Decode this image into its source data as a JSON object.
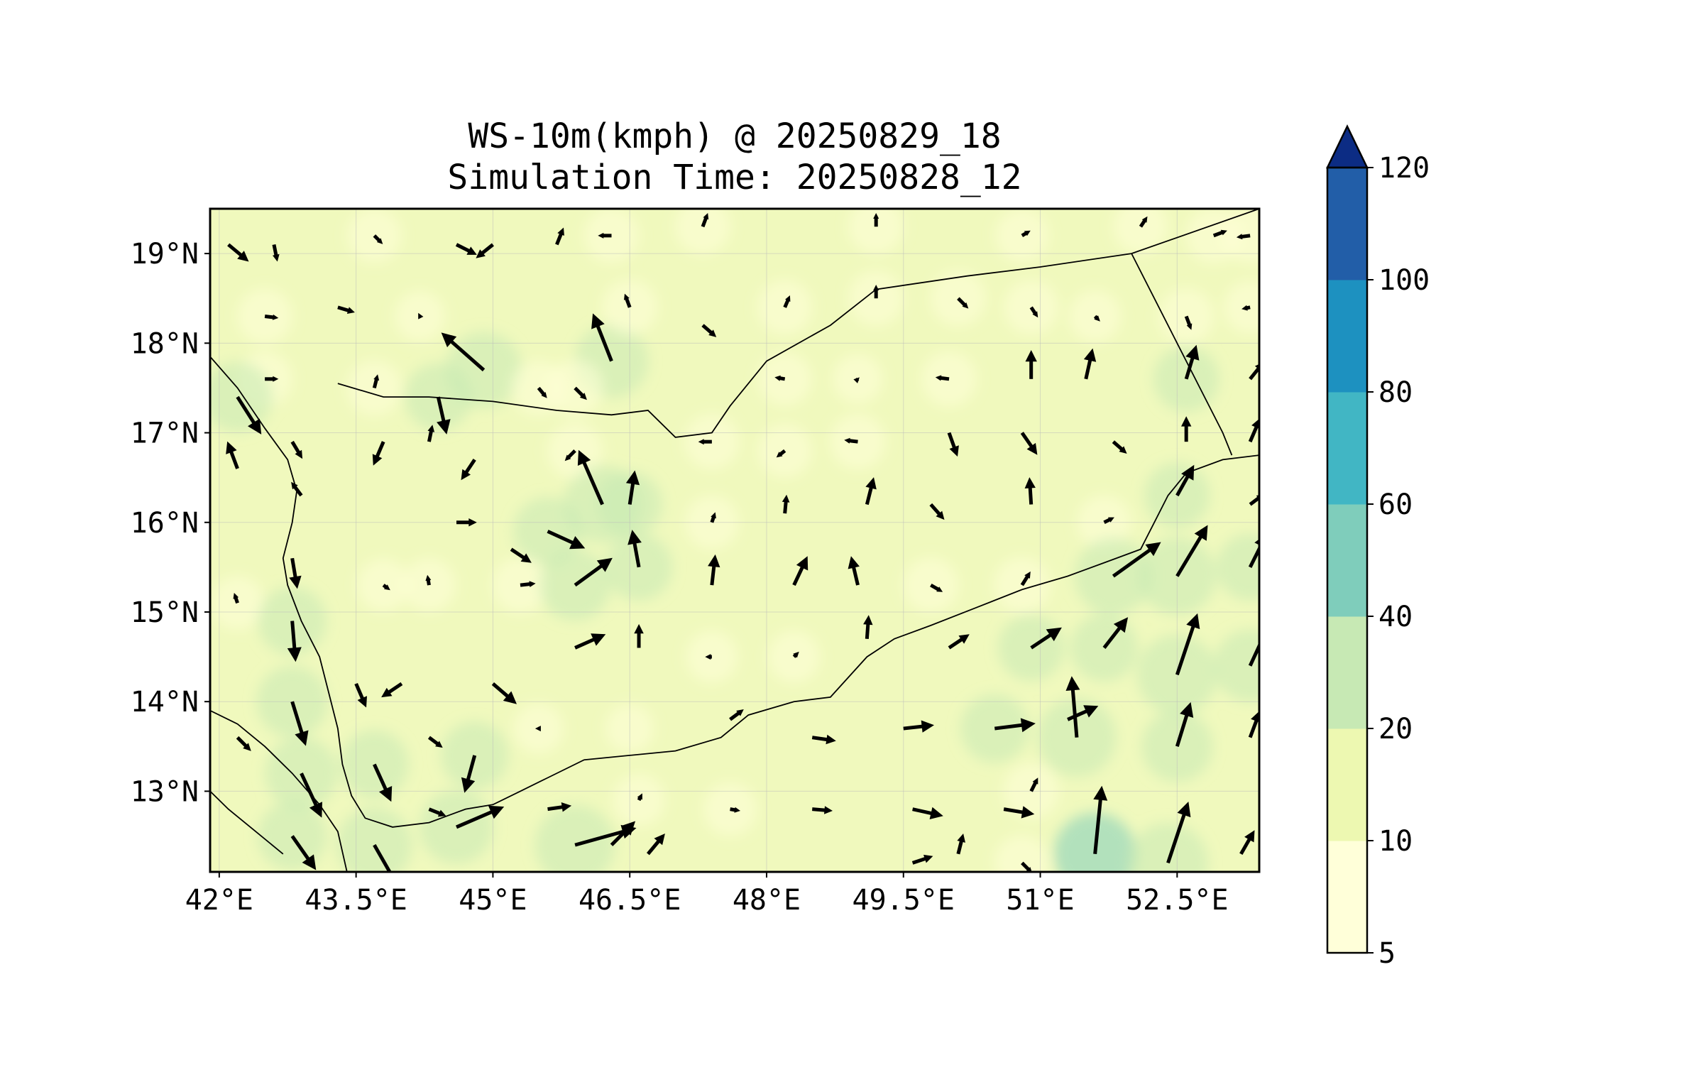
{
  "title": {
    "line1": "WS-10m(kmph) @ 20250829_18",
    "line2": "Simulation Time: 20250828_12"
  },
  "map": {
    "variable": "10 m wind speed",
    "units": "kmph",
    "lon_range": [
      41.9,
      53.4
    ],
    "lat_range": [
      12.1,
      19.5
    ],
    "lon_ticks": [
      42,
      43.5,
      45,
      46.5,
      48,
      49.5,
      51,
      52.5
    ],
    "lon_labels": [
      "42°E",
      "43.5°E",
      "45°E",
      "46.5°E",
      "48°E",
      "49.5°E",
      "51°E",
      "52.5°E"
    ],
    "lat_ticks": [
      13,
      14,
      15,
      16,
      17,
      18,
      19
    ],
    "lat_labels": [
      "13°N",
      "14°N",
      "15°N",
      "16°N",
      "17°N",
      "18°N",
      "19°N"
    ],
    "gridlines": true
  },
  "colorbar": {
    "levels": [
      5,
      10,
      20,
      40,
      60,
      80,
      100,
      120
    ],
    "labels": [
      "5",
      "10",
      "20",
      "40",
      "60",
      "80",
      "100",
      "120"
    ],
    "colors": [
      "#ffffd9",
      "#edf8b1",
      "#c7e9b4",
      "#7fcdbb",
      "#41b6c4",
      "#1d91c0",
      "#225ea8",
      "#0c2c84"
    ],
    "extend": "max"
  },
  "wind_vectors": [
    {
      "lon": 42.1,
      "lat": 19.1,
      "u": 12,
      "v": -10
    },
    {
      "lon": 42.6,
      "lat": 19.1,
      "u": 2,
      "v": -10
    },
    {
      "lon": 43.7,
      "lat": 19.2,
      "u": 5,
      "v": -5
    },
    {
      "lon": 44.6,
      "lat": 19.1,
      "u": 12,
      "v": -6
    },
    {
      "lon": 45.0,
      "lat": 19.1,
      "u": -10,
      "v": -8
    },
    {
      "lon": 45.7,
      "lat": 19.1,
      "u": 4,
      "v": 10
    },
    {
      "lon": 46.3,
      "lat": 19.2,
      "u": -8,
      "v": 0
    },
    {
      "lon": 47.3,
      "lat": 19.3,
      "u": 3,
      "v": 8
    },
    {
      "lon": 49.2,
      "lat": 19.3,
      "u": 0,
      "v": 8
    },
    {
      "lon": 50.8,
      "lat": 19.2,
      "u": 5,
      "v": 3
    },
    {
      "lon": 52.1,
      "lat": 19.3,
      "u": 4,
      "v": 6
    },
    {
      "lon": 52.9,
      "lat": 19.2,
      "u": 8,
      "v": 3
    },
    {
      "lon": 53.3,
      "lat": 19.2,
      "u": -8,
      "v": -1
    },
    {
      "lon": 42.5,
      "lat": 18.3,
      "u": 8,
      "v": -1
    },
    {
      "lon": 43.3,
      "lat": 18.4,
      "u": 10,
      "v": -3
    },
    {
      "lon": 44.2,
      "lat": 18.3,
      "u": -1,
      "v": 2
    },
    {
      "lon": 44.9,
      "lat": 17.7,
      "u": -25,
      "v": 22
    },
    {
      "lon": 45.5,
      "lat": 17.5,
      "u": 5,
      "v": -6
    },
    {
      "lon": 46.3,
      "lat": 17.8,
      "u": -11,
      "v": 28
    },
    {
      "lon": 46.5,
      "lat": 18.4,
      "u": -3,
      "v": 8
    },
    {
      "lon": 47.3,
      "lat": 18.2,
      "u": 8,
      "v": -7
    },
    {
      "lon": 48.2,
      "lat": 18.4,
      "u": 3,
      "v": 7
    },
    {
      "lon": 49.2,
      "lat": 18.5,
      "u": 0,
      "v": 8
    },
    {
      "lon": 50.1,
      "lat": 18.5,
      "u": 6,
      "v": -6
    },
    {
      "lon": 50.9,
      "lat": 18.4,
      "u": 4,
      "v": -6
    },
    {
      "lon": 51.6,
      "lat": 18.3,
      "u": 3,
      "v": -3
    },
    {
      "lon": 52.6,
      "lat": 18.3,
      "u": 3,
      "v": -8
    },
    {
      "lon": 53.3,
      "lat": 18.4,
      "u": -5,
      "v": -1
    },
    {
      "lon": 42.5,
      "lat": 17.6,
      "u": 8,
      "v": 0
    },
    {
      "lon": 43.7,
      "lat": 17.5,
      "u": 2,
      "v": 8
    },
    {
      "lon": 44.4,
      "lat": 17.4,
      "u": 5,
      "v": -22
    },
    {
      "lon": 45.9,
      "lat": 17.5,
      "u": 7,
      "v": -7
    },
    {
      "lon": 48.2,
      "lat": 17.6,
      "u": -6,
      "v": 1
    },
    {
      "lon": 49.0,
      "lat": 17.6,
      "u": 1,
      "v": 1
    },
    {
      "lon": 50.0,
      "lat": 17.6,
      "u": -8,
      "v": 1
    },
    {
      "lon": 50.9,
      "lat": 17.6,
      "u": 0,
      "v": 17
    },
    {
      "lon": 51.5,
      "lat": 17.6,
      "u": 4,
      "v": 18
    },
    {
      "lon": 52.6,
      "lat": 17.6,
      "u": 6,
      "v": 20
    },
    {
      "lon": 53.3,
      "lat": 17.6,
      "u": 8,
      "v": 10
    },
    {
      "lon": 42.2,
      "lat": 17.4,
      "u": 14,
      "v": -22
    },
    {
      "lon": 42.2,
      "lat": 16.6,
      "u": -6,
      "v": 16
    },
    {
      "lon": 42.8,
      "lat": 16.9,
      "u": 6,
      "v": -10
    },
    {
      "lon": 43.8,
      "lat": 16.9,
      "u": -6,
      "v": -14
    },
    {
      "lon": 44.3,
      "lat": 16.9,
      "u": 2,
      "v": 10
    },
    {
      "lon": 44.8,
      "lat": 16.7,
      "u": -8,
      "v": -12
    },
    {
      "lon": 45.9,
      "lat": 16.8,
      "u": -6,
      "v": -6
    },
    {
      "lon": 47.4,
      "lat": 16.9,
      "u": -8,
      "v": 0
    },
    {
      "lon": 48.2,
      "lat": 16.8,
      "u": -5,
      "v": -4
    },
    {
      "lon": 49.0,
      "lat": 16.9,
      "u": -8,
      "v": 1
    },
    {
      "lon": 50.0,
      "lat": 17.0,
      "u": 5,
      "v": -14
    },
    {
      "lon": 50.8,
      "lat": 17.0,
      "u": 9,
      "v": -13
    },
    {
      "lon": 51.8,
      "lat": 16.9,
      "u": 8,
      "v": -7
    },
    {
      "lon": 52.6,
      "lat": 16.9,
      "u": 0,
      "v": 15
    },
    {
      "lon": 53.3,
      "lat": 16.9,
      "u": 6,
      "v": 14
    },
    {
      "lon": 42.9,
      "lat": 16.3,
      "u": -6,
      "v": 8
    },
    {
      "lon": 44.6,
      "lat": 16.0,
      "u": 12,
      "v": 0
    },
    {
      "lon": 45.6,
      "lat": 15.9,
      "u": 22,
      "v": -10
    },
    {
      "lon": 46.2,
      "lat": 16.2,
      "u": -14,
      "v": 32
    },
    {
      "lon": 46.5,
      "lat": 16.2,
      "u": 3,
      "v": 20
    },
    {
      "lon": 47.4,
      "lat": 16.0,
      "u": 2,
      "v": 6
    },
    {
      "lon": 48.2,
      "lat": 16.1,
      "u": 1,
      "v": 11
    },
    {
      "lon": 49.1,
      "lat": 16.2,
      "u": 4,
      "v": 16
    },
    {
      "lon": 49.8,
      "lat": 16.2,
      "u": 8,
      "v": -9
    },
    {
      "lon": 50.9,
      "lat": 16.2,
      "u": -1,
      "v": 16
    },
    {
      "lon": 51.7,
      "lat": 16.0,
      "u": 6,
      "v": 3
    },
    {
      "lon": 52.5,
      "lat": 16.3,
      "u": 10,
      "v": 18
    },
    {
      "lon": 53.3,
      "lat": 16.2,
      "u": 8,
      "v": 6
    },
    {
      "lon": 42.8,
      "lat": 15.6,
      "u": 3,
      "v": -18
    },
    {
      "lon": 43.8,
      "lat": 15.3,
      "u": 4,
      "v": -3
    },
    {
      "lon": 44.3,
      "lat": 15.3,
      "u": -1,
      "v": 6
    },
    {
      "lon": 45.3,
      "lat": 15.3,
      "u": 9,
      "v": 1
    },
    {
      "lon": 45.2,
      "lat": 15.7,
      "u": 12,
      "v": -8
    },
    {
      "lon": 45.9,
      "lat": 15.3,
      "u": 22,
      "v": 16
    },
    {
      "lon": 46.6,
      "lat": 15.5,
      "u": -4,
      "v": 22
    },
    {
      "lon": 47.4,
      "lat": 15.3,
      "u": 2,
      "v": 18
    },
    {
      "lon": 48.3,
      "lat": 15.3,
      "u": 8,
      "v": 17
    },
    {
      "lon": 49.0,
      "lat": 15.3,
      "u": -4,
      "v": 17
    },
    {
      "lon": 49.8,
      "lat": 15.3,
      "u": 7,
      "v": -4
    },
    {
      "lon": 50.8,
      "lat": 15.3,
      "u": 5,
      "v": 8
    },
    {
      "lon": 51.8,
      "lat": 15.4,
      "u": 28,
      "v": 20
    },
    {
      "lon": 52.5,
      "lat": 15.4,
      "u": 18,
      "v": 30
    },
    {
      "lon": 53.3,
      "lat": 15.5,
      "u": 10,
      "v": 20
    },
    {
      "lon": 42.2,
      "lat": 15.1,
      "u": -2,
      "v": 6
    },
    {
      "lon": 42.8,
      "lat": 14.9,
      "u": 2,
      "v": -24
    },
    {
      "lon": 43.5,
      "lat": 14.2,
      "u": 6,
      "v": -14
    },
    {
      "lon": 44.0,
      "lat": 14.2,
      "u": -12,
      "v": -8
    },
    {
      "lon": 45.0,
      "lat": 14.2,
      "u": 14,
      "v": -12
    },
    {
      "lon": 45.9,
      "lat": 14.6,
      "u": 18,
      "v": 8
    },
    {
      "lon": 46.6,
      "lat": 14.6,
      "u": 0,
      "v": 14
    },
    {
      "lon": 47.4,
      "lat": 14.5,
      "u": -4,
      "v": 0
    },
    {
      "lon": 48.3,
      "lat": 14.5,
      "u": 3,
      "v": 3
    },
    {
      "lon": 49.1,
      "lat": 14.7,
      "u": 1,
      "v": 14
    },
    {
      "lon": 50.0,
      "lat": 14.6,
      "u": 12,
      "v": 8
    },
    {
      "lon": 50.9,
      "lat": 14.6,
      "u": 18,
      "v": 12
    },
    {
      "lon": 51.7,
      "lat": 14.6,
      "u": 14,
      "v": 18
    },
    {
      "lon": 52.5,
      "lat": 14.3,
      "u": 12,
      "v": 36
    },
    {
      "lon": 53.3,
      "lat": 14.4,
      "u": 12,
      "v": 26
    },
    {
      "lon": 42.8,
      "lat": 14.0,
      "u": 8,
      "v": -26
    },
    {
      "lon": 42.2,
      "lat": 13.6,
      "u": 8,
      "v": -8
    },
    {
      "lon": 42.9,
      "lat": 13.2,
      "u": 12,
      "v": -26
    },
    {
      "lon": 43.7,
      "lat": 13.3,
      "u": 10,
      "v": -22
    },
    {
      "lon": 44.3,
      "lat": 13.6,
      "u": 8,
      "v": -6
    },
    {
      "lon": 44.8,
      "lat": 13.4,
      "u": -6,
      "v": -22
    },
    {
      "lon": 45.5,
      "lat": 13.7,
      "u": -2,
      "v": 0
    },
    {
      "lon": 46.5,
      "lat": 13.7,
      "u": 0,
      "v": 0
    },
    {
      "lon": 47.6,
      "lat": 13.8,
      "u": 8,
      "v": 6
    },
    {
      "lon": 48.5,
      "lat": 13.6,
      "u": 14,
      "v": -2
    },
    {
      "lon": 49.5,
      "lat": 13.7,
      "u": 18,
      "v": 2
    },
    {
      "lon": 50.5,
      "lat": 13.7,
      "u": 24,
      "v": 3
    },
    {
      "lon": 51.3,
      "lat": 13.8,
      "u": 18,
      "v": 8
    },
    {
      "lon": 51.4,
      "lat": 13.6,
      "u": -3,
      "v": 36
    },
    {
      "lon": 52.5,
      "lat": 13.5,
      "u": 8,
      "v": 26
    },
    {
      "lon": 53.3,
      "lat": 13.6,
      "u": 6,
      "v": 16
    },
    {
      "lon": 42.8,
      "lat": 12.5,
      "u": 14,
      "v": -20
    },
    {
      "lon": 43.7,
      "lat": 12.4,
      "u": 16,
      "v": -28
    },
    {
      "lon": 44.3,
      "lat": 12.8,
      "u": 10,
      "v": -4
    },
    {
      "lon": 44.6,
      "lat": 12.6,
      "u": 28,
      "v": 12
    },
    {
      "lon": 45.6,
      "lat": 12.8,
      "u": 14,
      "v": 2
    },
    {
      "lon": 46.6,
      "lat": 12.9,
      "u": 2,
      "v": 4
    },
    {
      "lon": 47.6,
      "lat": 12.8,
      "u": 6,
      "v": -1
    },
    {
      "lon": 48.5,
      "lat": 12.8,
      "u": 12,
      "v": -1
    },
    {
      "lon": 49.6,
      "lat": 12.8,
      "u": 18,
      "v": -4
    },
    {
      "lon": 50.6,
      "lat": 12.8,
      "u": 18,
      "v": -3
    },
    {
      "lon": 50.9,
      "lat": 13.0,
      "u": 4,
      "v": 8
    },
    {
      "lon": 45.9,
      "lat": 12.4,
      "u": 36,
      "v": 10
    },
    {
      "lon": 46.3,
      "lat": 12.4,
      "u": 14,
      "v": 14
    },
    {
      "lon": 46.7,
      "lat": 12.3,
      "u": 10,
      "v": 12
    },
    {
      "lon": 49.6,
      "lat": 12.2,
      "u": 12,
      "v": 4
    },
    {
      "lon": 50.1,
      "lat": 12.3,
      "u": 3,
      "v": 12
    },
    {
      "lon": 50.8,
      "lat": 12.2,
      "u": 6,
      "v": -6
    },
    {
      "lon": 51.6,
      "lat": 12.3,
      "u": 4,
      "v": 40
    },
    {
      "lon": 52.4,
      "lat": 12.2,
      "u": 12,
      "v": 36
    },
    {
      "lon": 53.2,
      "lat": 12.3,
      "u": 8,
      "v": 14
    }
  ],
  "boundaries": {
    "coast_west": [
      [
        41.9,
        17.85
      ],
      [
        42.2,
        17.5
      ],
      [
        42.5,
        17.05
      ],
      [
        42.75,
        16.7
      ],
      [
        42.85,
        16.35
      ],
      [
        42.8,
        16.0
      ],
      [
        42.7,
        15.6
      ],
      [
        42.75,
        15.3
      ],
      [
        42.9,
        14.9
      ],
      [
        43.1,
        14.5
      ],
      [
        43.2,
        14.1
      ],
      [
        43.3,
        13.7
      ],
      [
        43.35,
        13.3
      ],
      [
        43.45,
        12.95
      ],
      [
        43.6,
        12.7
      ],
      [
        43.9,
        12.6
      ],
      [
        44.3,
        12.65
      ],
      [
        44.7,
        12.8
      ],
      [
        45.0,
        12.85
      ],
      [
        45.3,
        13.0
      ],
      [
        45.6,
        13.15
      ],
      [
        46.0,
        13.35
      ],
      [
        46.5,
        13.4
      ],
      [
        47.0,
        13.45
      ],
      [
        47.5,
        13.6
      ],
      [
        47.8,
        13.85
      ],
      [
        48.3,
        14.0
      ],
      [
        48.7,
        14.05
      ],
      [
        49.1,
        14.5
      ],
      [
        49.4,
        14.7
      ],
      [
        49.8,
        14.85
      ],
      [
        50.3,
        15.05
      ],
      [
        50.8,
        15.25
      ],
      [
        51.3,
        15.4
      ],
      [
        51.7,
        15.55
      ],
      [
        52.1,
        15.7
      ],
      [
        52.25,
        16.0
      ],
      [
        52.4,
        16.3
      ],
      [
        52.6,
        16.55
      ],
      [
        53.0,
        16.7
      ],
      [
        53.4,
        16.75
      ]
    ],
    "coast_africa": [
      [
        41.9,
        13.9
      ],
      [
        42.2,
        13.75
      ],
      [
        42.5,
        13.5
      ],
      [
        42.8,
        13.2
      ],
      [
        43.1,
        12.85
      ],
      [
        43.3,
        12.55
      ],
      [
        43.4,
        12.1
      ]
    ],
    "coast_africa2": [
      [
        41.9,
        13.0
      ],
      [
        42.1,
        12.8
      ],
      [
        42.4,
        12.55
      ],
      [
        42.7,
        12.3
      ]
    ],
    "border_yemen_saudi": [
      [
        43.3,
        17.55
      ],
      [
        43.8,
        17.4
      ],
      [
        44.3,
        17.4
      ],
      [
        45.0,
        17.35
      ],
      [
        45.7,
        17.25
      ],
      [
        46.3,
        17.2
      ],
      [
        46.7,
        17.25
      ],
      [
        47.0,
        16.95
      ],
      [
        47.4,
        17.0
      ],
      [
        47.6,
        17.3
      ],
      [
        48.0,
        17.8
      ],
      [
        48.7,
        18.2
      ],
      [
        49.2,
        18.6
      ],
      [
        50.2,
        18.75
      ],
      [
        51.0,
        18.85
      ],
      [
        52.0,
        19.0
      ],
      [
        53.4,
        19.5
      ]
    ],
    "border_yemen_oman": [
      [
        52.0,
        19.0
      ],
      [
        52.5,
        18.0
      ],
      [
        53.0,
        17.0
      ],
      [
        53.1,
        16.75
      ]
    ]
  }
}
